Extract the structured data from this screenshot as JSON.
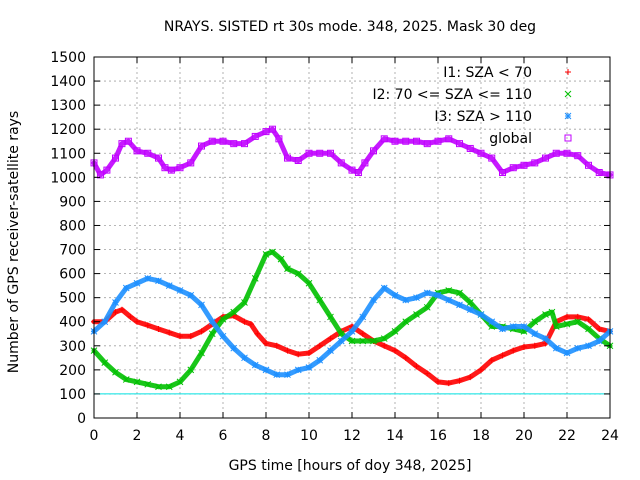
{
  "chart_data": {
    "type": "scatter",
    "title": "NRAYS. SISTED rt 30s mode. 348, 2025. Mask 30 deg",
    "xlabel": "GPS time [hours of doy 348, 2025]",
    "ylabel": "Number of GPS receiver-satellite rays",
    "xlim": [
      0,
      24
    ],
    "ylim": [
      0,
      1500
    ],
    "x_ticks": [
      0,
      2,
      4,
      6,
      8,
      10,
      12,
      14,
      16,
      18,
      20,
      22,
      24
    ],
    "y_ticks": [
      0,
      100,
      200,
      300,
      400,
      500,
      600,
      700,
      800,
      900,
      1000,
      1100,
      1200,
      1300,
      1400,
      1500
    ],
    "grid": true,
    "legend_position": "top-right",
    "reference_line": {
      "y": 100,
      "color": "#00e0e0"
    },
    "series": [
      {
        "name": "I1: SZA < 70",
        "marker": "+",
        "color": "#ff0000",
        "x": [
          0,
          0.5,
          1,
          1.3,
          1.7,
          2,
          2.5,
          3,
          3.5,
          4,
          4.5,
          5,
          5.5,
          6,
          6.5,
          7,
          7.3,
          7.6,
          8,
          8.5,
          9,
          9.5,
          10,
          10.5,
          11,
          11.5,
          12,
          12.5,
          13,
          13.5,
          14,
          14.5,
          15,
          15.5,
          16,
          16.5,
          17,
          17.5,
          18,
          18.5,
          19,
          19.5,
          20,
          20.5,
          21,
          21.5,
          22,
          22.5,
          23,
          23.5,
          24
        ],
        "y": [
          400,
          400,
          440,
          450,
          420,
          400,
          385,
          370,
          355,
          340,
          340,
          360,
          390,
          420,
          425,
          400,
          390,
          350,
          310,
          300,
          280,
          265,
          270,
          300,
          330,
          360,
          380,
          350,
          320,
          300,
          280,
          250,
          215,
          185,
          150,
          145,
          155,
          170,
          200,
          240,
          260,
          280,
          295,
          300,
          310,
          400,
          420,
          420,
          410,
          370,
          360
        ]
      },
      {
        "name": "I2: 70 <= SZA <= 110",
        "marker": "x",
        "color": "#00c000",
        "x": [
          0,
          0.5,
          1,
          1.5,
          2,
          2.5,
          3,
          3.5,
          4,
          4.5,
          5,
          5.5,
          6,
          6.5,
          7,
          7.5,
          8,
          8.3,
          8.7,
          9,
          9.5,
          10,
          10.5,
          11,
          11.5,
          12,
          12.5,
          13,
          13.5,
          14,
          14.5,
          15,
          15.5,
          16,
          16.5,
          17,
          17.5,
          18,
          18.5,
          19,
          19.5,
          20,
          20.5,
          21,
          21.3,
          21.5,
          22,
          22.5,
          23,
          23.5,
          24
        ],
        "y": [
          280,
          230,
          190,
          160,
          150,
          140,
          130,
          130,
          150,
          200,
          270,
          350,
          410,
          440,
          480,
          580,
          680,
          690,
          660,
          620,
          600,
          560,
          490,
          420,
          350,
          320,
          320,
          320,
          330,
          360,
          400,
          430,
          460,
          520,
          530,
          520,
          480,
          430,
          380,
          380,
          370,
          360,
          400,
          430,
          440,
          380,
          390,
          400,
          370,
          330,
          300
        ]
      },
      {
        "name": "I3: SZA > 110",
        "marker": "*",
        "color": "#1e90ff",
        "x": [
          0,
          0.5,
          1,
          1.5,
          2,
          2.5,
          3,
          3.5,
          4,
          4.5,
          5,
          5.5,
          6,
          6.5,
          7,
          7.5,
          8,
          8.5,
          9,
          9.5,
          10,
          10.5,
          11,
          11.5,
          12,
          12.5,
          13,
          13.5,
          14,
          14.5,
          15,
          15.5,
          16,
          16.5,
          17,
          17.5,
          18,
          18.5,
          19,
          19.5,
          20,
          20.5,
          21,
          21.5,
          22,
          22.5,
          23,
          23.5,
          24
        ],
        "y": [
          360,
          400,
          480,
          540,
          560,
          580,
          570,
          550,
          530,
          510,
          470,
          400,
          340,
          290,
          250,
          220,
          200,
          180,
          180,
          200,
          210,
          240,
          280,
          320,
          360,
          420,
          490,
          540,
          510,
          490,
          500,
          520,
          510,
          490,
          470,
          450,
          430,
          400,
          370,
          380,
          380,
          350,
          330,
          290,
          270,
          290,
          300,
          320,
          360
        ]
      },
      {
        "name": "global",
        "marker": "square",
        "color": "#c000ff",
        "x": [
          0,
          0.3,
          0.6,
          1,
          1.3,
          1.6,
          2,
          2.5,
          3,
          3.3,
          3.6,
          4,
          4.5,
          5,
          5.5,
          6,
          6.5,
          7,
          7.5,
          8,
          8.3,
          8.6,
          9,
          9.5,
          10,
          10.5,
          11,
          11.5,
          12,
          12.3,
          12.6,
          13,
          13.5,
          14,
          14.5,
          15,
          15.5,
          16,
          16.5,
          17,
          17.5,
          18,
          18.5,
          19,
          19.5,
          20,
          20.5,
          21,
          21.5,
          22,
          22.5,
          23,
          23.5,
          24
        ],
        "y": [
          1060,
          1010,
          1030,
          1080,
          1140,
          1150,
          1110,
          1100,
          1080,
          1040,
          1030,
          1040,
          1060,
          1130,
          1150,
          1150,
          1140,
          1140,
          1170,
          1190,
          1200,
          1160,
          1080,
          1070,
          1100,
          1100,
          1100,
          1060,
          1030,
          1020,
          1060,
          1110,
          1160,
          1150,
          1150,
          1150,
          1140,
          1150,
          1160,
          1140,
          1120,
          1100,
          1080,
          1020,
          1040,
          1050,
          1060,
          1080,
          1100,
          1100,
          1090,
          1050,
          1020,
          1010
        ]
      }
    ]
  }
}
